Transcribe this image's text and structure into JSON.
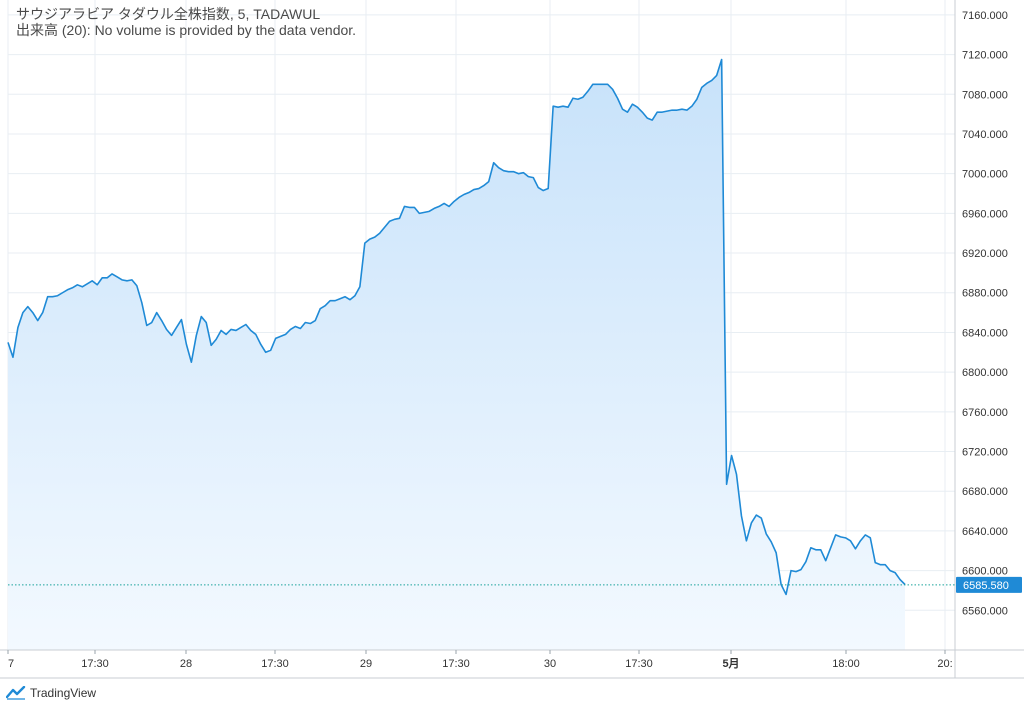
{
  "legend": {
    "line1": "サウジアラビア タダウル全株指数, 5, TADAWUL",
    "line2": "出来高 (20): No volume is provided by the data vendor."
  },
  "brand": {
    "name": "TradingView"
  },
  "colors": {
    "line": "#1f8ad6",
    "fill_top": "#c7e2fa",
    "fill_bottom": "#f3f9ff",
    "grid": "#e8eef3",
    "last_line": "#1aa39a",
    "badge": "#1f8ad6"
  },
  "chart_data": {
    "type": "area",
    "ylim": [
      6520,
      7175
    ],
    "yticks": [
      "7160.000",
      "7120.000",
      "7080.000",
      "7040.000",
      "7000.000",
      "6960.000",
      "6920.000",
      "6880.000",
      "6840.000",
      "6800.000",
      "6760.000",
      "6720.000",
      "6680.000",
      "6640.000",
      "6600.000",
      "6560.000"
    ],
    "x_labels": [
      "7",
      "17:30",
      "28",
      "17:30",
      "29",
      "17:30",
      "30",
      "17:30",
      "5月",
      "18:00",
      "20:"
    ],
    "last_value": "6585.580",
    "values": [
      6830,
      6815,
      6845,
      6860,
      6866,
      6860,
      6852,
      6860,
      6876,
      6876,
      6877,
      6880,
      6883,
      6885,
      6888,
      6886,
      6889,
      6892,
      6888,
      6895,
      6895,
      6899,
      6896,
      6893,
      6892,
      6893,
      6887,
      6870,
      6847,
      6850,
      6860,
      6852,
      6843,
      6837,
      6845,
      6853,
      6828,
      6810,
      6837,
      6856,
      6850,
      6827,
      6833,
      6842,
      6838,
      6843,
      6842,
      6845,
      6848,
      6842,
      6838,
      6828,
      6820,
      6822,
      6834,
      6836,
      6838,
      6843,
      6846,
      6844,
      6850,
      6849,
      6852,
      6864,
      6867,
      6872,
      6872,
      6874,
      6876,
      6873,
      6877,
      6886,
      6930,
      6934,
      6936,
      6940,
      6946,
      6952,
      6954,
      6955,
      6967,
      6966,
      6966,
      6960,
      6961,
      6962,
      6965,
      6967,
      6970,
      6967,
      6972,
      6976,
      6979,
      6981,
      6984,
      6985,
      6988,
      6992,
      7011,
      7006,
      7003,
      7002,
      7002,
      7000,
      7001,
      6997,
      6996,
      6986,
      6983,
      6985,
      7068,
      7067,
      7068,
      7067,
      7076,
      7075,
      7077,
      7083,
      7090,
      7090,
      7090,
      7090,
      7085,
      7076,
      7065,
      7062,
      7070,
      7067,
      7062,
      7056,
      7054,
      7062,
      7062,
      7063,
      7064,
      7064,
      7065,
      7064,
      7068,
      7075,
      7087,
      7091,
      7094,
      7099,
      7115,
      6687,
      6716,
      6697,
      6655,
      6630,
      6648,
      6656,
      6653,
      6637,
      6629,
      6618,
      6586,
      6576,
      6600,
      6599,
      6601,
      6609,
      6623,
      6621,
      6621,
      6610,
      6623,
      6636,
      6634,
      6633,
      6630,
      6622,
      6630,
      6636,
      6633,
      6608,
      6606,
      6606,
      6600,
      6598,
      6591,
      6586
    ]
  }
}
